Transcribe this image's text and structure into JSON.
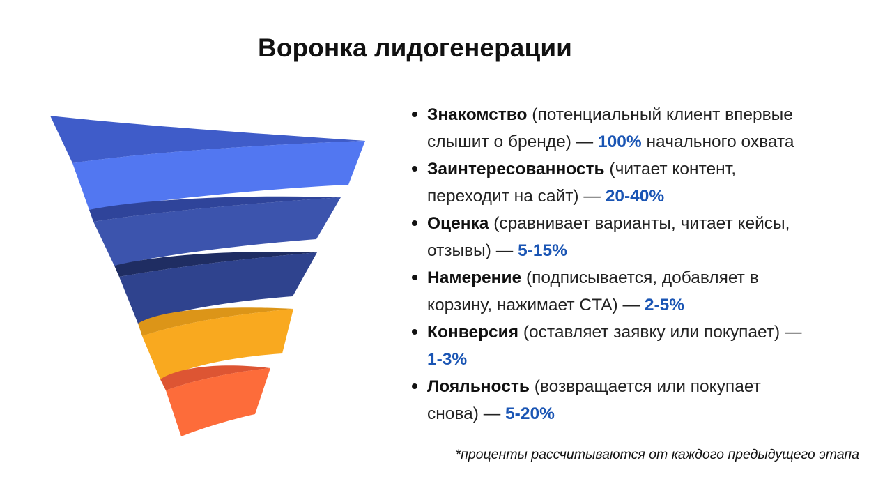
{
  "title": "Воронка лидогенерации",
  "colors": {
    "blue_light": "#5176f1",
    "blue_mid": "#3954b8",
    "blue_dark": "#2d3f8e",
    "yellow": "#f9a91f",
    "orange": "#fd6c3a",
    "rate_blue": "#1a55b4"
  },
  "stages": [
    {
      "name": "Знакомство",
      "description_line1": " (потенциальный клиент впервые",
      "description_line2": "слышит о бренде) — ",
      "rate": "100%",
      "after_rate": " начального охвата"
    },
    {
      "name": "Заинтересованность",
      "description_line1": " (читает контент,",
      "description_line2": "переходит на сайт) — ",
      "rate": "20-40%",
      "after_rate": ""
    },
    {
      "name": "Оценка",
      "description_line1": " (сравнивает варианты, читает кейсы,",
      "description_line2": "отзывы) — ",
      "rate": "5-15%",
      "after_rate": ""
    },
    {
      "name": "Намерение",
      "description_line1": " (подписывается, добавляет в",
      "description_line2": "корзину, нажимает CTA) — ",
      "rate": "2-5%",
      "after_rate": ""
    },
    {
      "name": "Конверсия",
      "description_line1": " (оставляет заявку или покупает) —",
      "description_line2": "",
      "rate": "1-3%",
      "after_rate": ""
    },
    {
      "name": "Лояльность",
      "description_line1": " (возвращается или покупает",
      "description_line2": "снова) — ",
      "rate": "5-20%",
      "after_rate": ""
    }
  ],
  "footnote": "*проценты рассчитываются от каждого предыдущего этапа"
}
